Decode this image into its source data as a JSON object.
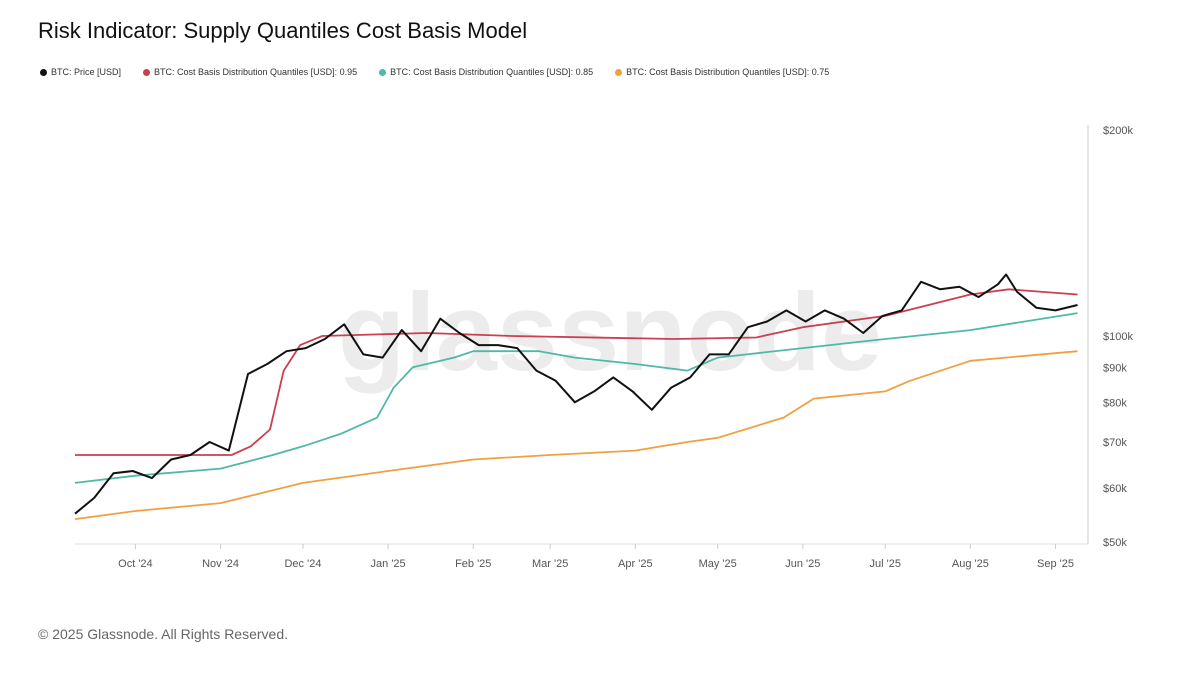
{
  "chart_data": {
    "type": "line",
    "title": "Risk Indicator: Supply Quantiles Cost Basis Model",
    "y_scale": "log",
    "ylim": [
      50000,
      200000
    ],
    "y_ticks": [
      {
        "v": 200000,
        "label": "$200k"
      },
      {
        "v": 100000,
        "label": "$100k"
      },
      {
        "v": 90000,
        "label": "$90k"
      },
      {
        "v": 80000,
        "label": "$80k"
      },
      {
        "v": 70000,
        "label": "$70k"
      },
      {
        "v": 60000,
        "label": "$60k"
      },
      {
        "v": 50000,
        "label": "$50k"
      }
    ],
    "xlim": [
      "2024-09-09",
      "2025-09-11"
    ],
    "x_ticks": [
      {
        "d": "2024-10-01",
        "label": "Oct '24"
      },
      {
        "d": "2024-11-01",
        "label": "Nov '24"
      },
      {
        "d": "2024-12-01",
        "label": "Dec '24"
      },
      {
        "d": "2025-01-01",
        "label": "Jan '25"
      },
      {
        "d": "2025-02-01",
        "label": "Feb '25"
      },
      {
        "d": "2025-03-01",
        "label": "Mar '25"
      },
      {
        "d": "2025-04-01",
        "label": "Apr '25"
      },
      {
        "d": "2025-05-01",
        "label": "May '25"
      },
      {
        "d": "2025-06-01",
        "label": "Jun '25"
      },
      {
        "d": "2025-07-01",
        "label": "Jul '25"
      },
      {
        "d": "2025-08-01",
        "label": "Aug '25"
      },
      {
        "d": "2025-09-01",
        "label": "Sep '25"
      }
    ],
    "legend_placement": "top-left",
    "grid": false,
    "watermark": "glassnode",
    "series": [
      {
        "name": "BTC: Price [USD]",
        "color": "#111111",
        "points": [
          [
            "2024-09-09",
            55000
          ],
          [
            "2024-09-16",
            58000
          ],
          [
            "2024-09-23",
            63000
          ],
          [
            "2024-09-30",
            63500
          ],
          [
            "2024-10-07",
            62000
          ],
          [
            "2024-10-14",
            66000
          ],
          [
            "2024-10-21",
            67000
          ],
          [
            "2024-10-28",
            70000
          ],
          [
            "2024-11-04",
            68000
          ],
          [
            "2024-11-11",
            88000
          ],
          [
            "2024-11-18",
            91000
          ],
          [
            "2024-11-25",
            95000
          ],
          [
            "2024-12-02",
            96000
          ],
          [
            "2024-12-09",
            99000
          ],
          [
            "2024-12-16",
            104000
          ],
          [
            "2024-12-23",
            94000
          ],
          [
            "2024-12-30",
            93000
          ],
          [
            "2025-01-06",
            102000
          ],
          [
            "2025-01-13",
            95000
          ],
          [
            "2025-01-20",
            106000
          ],
          [
            "2025-01-27",
            101000
          ],
          [
            "2025-02-03",
            97000
          ],
          [
            "2025-02-10",
            97000
          ],
          [
            "2025-02-17",
            96000
          ],
          [
            "2025-02-24",
            89000
          ],
          [
            "2025-03-03",
            86000
          ],
          [
            "2025-03-10",
            80000
          ],
          [
            "2025-03-17",
            83000
          ],
          [
            "2025-03-24",
            87000
          ],
          [
            "2025-03-31",
            83000
          ],
          [
            "2025-04-07",
            78000
          ],
          [
            "2025-04-14",
            84000
          ],
          [
            "2025-04-21",
            87000
          ],
          [
            "2025-04-28",
            94000
          ],
          [
            "2025-05-05",
            94000
          ],
          [
            "2025-05-12",
            103000
          ],
          [
            "2025-05-19",
            105000
          ],
          [
            "2025-05-26",
            109000
          ],
          [
            "2025-06-02",
            105000
          ],
          [
            "2025-06-09",
            109000
          ],
          [
            "2025-06-16",
            106000
          ],
          [
            "2025-06-23",
            101000
          ],
          [
            "2025-06-30",
            107000
          ],
          [
            "2025-07-07",
            109000
          ],
          [
            "2025-07-14",
            120000
          ],
          [
            "2025-07-21",
            117000
          ],
          [
            "2025-07-28",
            118000
          ],
          [
            "2025-08-04",
            114000
          ],
          [
            "2025-08-11",
            119000
          ],
          [
            "2025-08-14",
            123000
          ],
          [
            "2025-08-18",
            116000
          ],
          [
            "2025-08-25",
            110000
          ],
          [
            "2025-09-01",
            109000
          ],
          [
            "2025-09-09",
            111000
          ]
        ]
      },
      {
        "name": "BTC: Cost Basis Distribution Quantiles [USD]: 0.95",
        "color": "#c9404f",
        "points": [
          [
            "2024-09-09",
            67000
          ],
          [
            "2024-11-05",
            67000
          ],
          [
            "2024-11-12",
            69000
          ],
          [
            "2024-11-19",
            73000
          ],
          [
            "2024-11-24",
            89000
          ],
          [
            "2024-11-30",
            97000
          ],
          [
            "2024-12-08",
            100000
          ],
          [
            "2025-01-15",
            101000
          ],
          [
            "2025-02-15",
            100000
          ],
          [
            "2025-04-15",
            99000
          ],
          [
            "2025-05-15",
            99500
          ],
          [
            "2025-06-01",
            103000
          ],
          [
            "2025-07-01",
            107000
          ],
          [
            "2025-08-01",
            115000
          ],
          [
            "2025-08-15",
            117000
          ],
          [
            "2025-09-09",
            115000
          ]
        ]
      },
      {
        "name": "BTC: Cost Basis Distribution Quantiles [USD]: 0.85",
        "color": "#4fb9a8",
        "points": [
          [
            "2024-09-09",
            61000
          ],
          [
            "2024-10-01",
            62500
          ],
          [
            "2024-11-01",
            64000
          ],
          [
            "2024-11-20",
            67000
          ],
          [
            "2024-12-01",
            69000
          ],
          [
            "2024-12-15",
            72000
          ],
          [
            "2024-12-28",
            76000
          ],
          [
            "2025-01-03",
            84000
          ],
          [
            "2025-01-10",
            90000
          ],
          [
            "2025-01-25",
            93000
          ],
          [
            "2025-02-01",
            95000
          ],
          [
            "2025-02-25",
            95000
          ],
          [
            "2025-03-10",
            93000
          ],
          [
            "2025-04-01",
            91000
          ],
          [
            "2025-04-20",
            89000
          ],
          [
            "2025-05-01",
            93000
          ],
          [
            "2025-06-01",
            96000
          ],
          [
            "2025-07-01",
            99000
          ],
          [
            "2025-08-01",
            102000
          ],
          [
            "2025-09-09",
            108000
          ]
        ]
      },
      {
        "name": "BTC: Cost Basis Distribution Quantiles [USD]: 0.75",
        "color": "#f0a040",
        "points": [
          [
            "2024-09-09",
            54000
          ],
          [
            "2024-10-01",
            55500
          ],
          [
            "2024-11-01",
            57000
          ],
          [
            "2024-12-01",
            61000
          ],
          [
            "2025-01-01",
            63500
          ],
          [
            "2025-02-01",
            66000
          ],
          [
            "2025-03-01",
            67000
          ],
          [
            "2025-04-01",
            68000
          ],
          [
            "2025-04-20",
            70000
          ],
          [
            "2025-05-01",
            71000
          ],
          [
            "2025-05-25",
            76000
          ],
          [
            "2025-06-05",
            81000
          ],
          [
            "2025-07-01",
            83000
          ],
          [
            "2025-07-10",
            86000
          ],
          [
            "2025-08-01",
            92000
          ],
          [
            "2025-09-09",
            95000
          ]
        ]
      }
    ]
  },
  "footer": "© 2025 Glassnode. All Rights Reserved."
}
